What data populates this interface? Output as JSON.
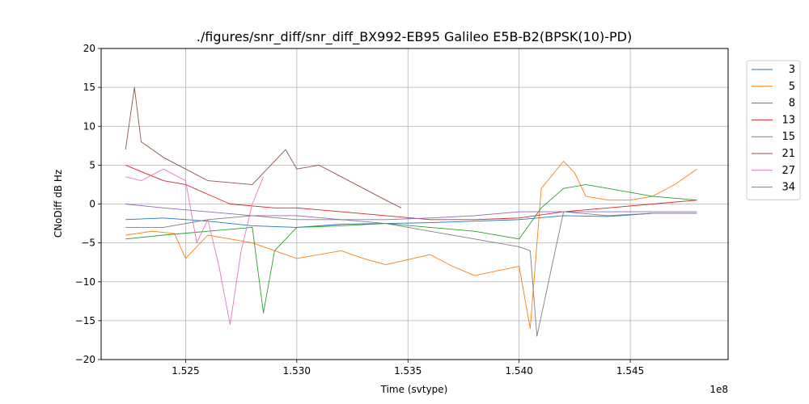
{
  "chart_data": {
    "type": "line",
    "title": "./figures/snr_diff/snr_diff_BX992-EB95 Galileo  E5B-B2(BPSK(10)-PD)",
    "xlabel": "Time (svtype)",
    "ylabel": "CNoDiff dB Hz",
    "x_offset_label": "1e8",
    "xlim": [
      152120000,
      154940000
    ],
    "ylim": [
      -20,
      20
    ],
    "x_ticks": [
      152500000,
      153000000,
      153500000,
      154000000,
      154500000
    ],
    "x_tick_labels": [
      "1.525",
      "1.530",
      "1.535",
      "1.540",
      "1.545"
    ],
    "y_ticks": [
      -20,
      -15,
      -10,
      -5,
      0,
      5,
      10,
      15,
      20
    ],
    "y_tick_labels": [
      "−20",
      "−15",
      "−10",
      "−5",
      "0",
      "5",
      "10",
      "15",
      "20"
    ],
    "grid": true,
    "legend_position": "outside-top-right",
    "series": [
      {
        "name": "3",
        "color": "#1f77b4",
        "x": [
          152230000,
          152400000,
          152600000,
          152800000,
          153000000,
          153200000,
          153400000,
          153600000,
          153800000,
          154000000,
          154200000,
          154400000,
          154600000,
          154800000
        ],
        "y": [
          -2.0,
          -1.8,
          -2.2,
          -2.8,
          -3.0,
          -2.6,
          -2.5,
          -2.4,
          -2.2,
          -2.0,
          -1.5,
          -1.6,
          -1.2,
          -1.2
        ]
      },
      {
        "name": "5",
        "color": "#ff7f0e",
        "x": [
          152230000,
          152350000,
          152450000,
          152500000,
          152600000,
          152800000,
          152900000,
          153000000,
          153200000,
          153300000,
          153400000,
          153600000,
          153700000,
          153800000,
          154000000,
          154050000,
          154100000,
          154200000,
          154250000,
          154300000,
          154400000,
          154500000,
          154600000,
          154700000,
          154800000
        ],
        "y": [
          -4.0,
          -3.5,
          -3.8,
          -7.0,
          -4.0,
          -5.0,
          -6.0,
          -7.0,
          -6.0,
          -7.0,
          -7.8,
          -6.5,
          -8.0,
          -9.2,
          -8.0,
          -16.0,
          2.0,
          5.5,
          4.0,
          1.0,
          0.5,
          0.5,
          1.0,
          2.5,
          4.5
        ]
      },
      {
        "name": "8",
        "color": "#2ca02c",
        "x": [
          152230000,
          152400000,
          152600000,
          152800000,
          152850000,
          152900000,
          153000000,
          153200000,
          153400000,
          153600000,
          153800000,
          154000000,
          154100000,
          154200000,
          154300000,
          154400000,
          154500000,
          154600000,
          154800000
        ],
        "y": [
          -4.5,
          -4.0,
          -3.5,
          -3.0,
          -14.0,
          -6.0,
          -3.0,
          -2.8,
          -2.5,
          -3.0,
          -3.5,
          -4.5,
          -0.5,
          2.0,
          2.5,
          2.0,
          1.5,
          1.0,
          0.5
        ]
      },
      {
        "name": "13",
        "color": "#d62728",
        "x": [
          152230000,
          152400000,
          152500000,
          152700000,
          152900000,
          153000000,
          153200000,
          153400000,
          153600000,
          153800000,
          154000000,
          154200000,
          154400000,
          154600000,
          154800000
        ],
        "y": [
          5.0,
          3.0,
          2.5,
          0.0,
          -0.5,
          -0.5,
          -1.0,
          -1.5,
          -2.0,
          -2.0,
          -1.8,
          -1.0,
          -0.5,
          0.0,
          0.5
        ]
      },
      {
        "name": "15",
        "color": "#9467bd",
        "x": [
          152230000,
          152400000,
          152600000,
          152800000,
          153000000,
          153200000,
          153400000,
          153600000,
          153800000,
          154000000,
          154200000,
          154400000,
          154600000,
          154800000
        ],
        "y": [
          0.0,
          -0.5,
          -1.0,
          -1.5,
          -1.5,
          -2.0,
          -2.0,
          -1.8,
          -1.5,
          -1.0,
          -1.0,
          -1.0,
          -1.0,
          -1.0
        ]
      },
      {
        "name": "21",
        "color": "#8c564b",
        "x": [
          152230000,
          152270000,
          152300000,
          152400000,
          152500000,
          152600000,
          152800000,
          152950000,
          153000000,
          153100000,
          153200000,
          153300000,
          153400000,
          153470000
        ],
        "y": [
          7.0,
          15.0,
          8.0,
          6.0,
          4.5,
          3.0,
          2.5,
          7.0,
          4.5,
          5.0,
          3.5,
          2.0,
          0.5,
          -0.5
        ]
      },
      {
        "name": "27",
        "color": "#e377c2",
        "x": [
          152230000,
          152300000,
          152400000,
          152500000,
          152550000,
          152600000,
          152650000,
          152700000,
          152750000,
          152800000,
          152850000
        ],
        "y": [
          3.5,
          3.0,
          4.5,
          3.0,
          -5.0,
          -2.0,
          -8.0,
          -15.5,
          -6.0,
          0.0,
          3.5
        ]
      },
      {
        "name": "34",
        "color": "#7f7f7f",
        "x": [
          152230000,
          152400000,
          152600000,
          152800000,
          153000000,
          153200000,
          153400000,
          153600000,
          153800000,
          154000000,
          154050000,
          154080000,
          154200000,
          154400000,
          154600000,
          154800000
        ],
        "y": [
          -3.0,
          -3.0,
          -2.0,
          -1.5,
          -2.0,
          -2.0,
          -2.5,
          -3.5,
          -4.5,
          -5.5,
          -6.0,
          -17.0,
          -1.0,
          -1.5,
          -1.2,
          -1.2
        ]
      }
    ]
  }
}
